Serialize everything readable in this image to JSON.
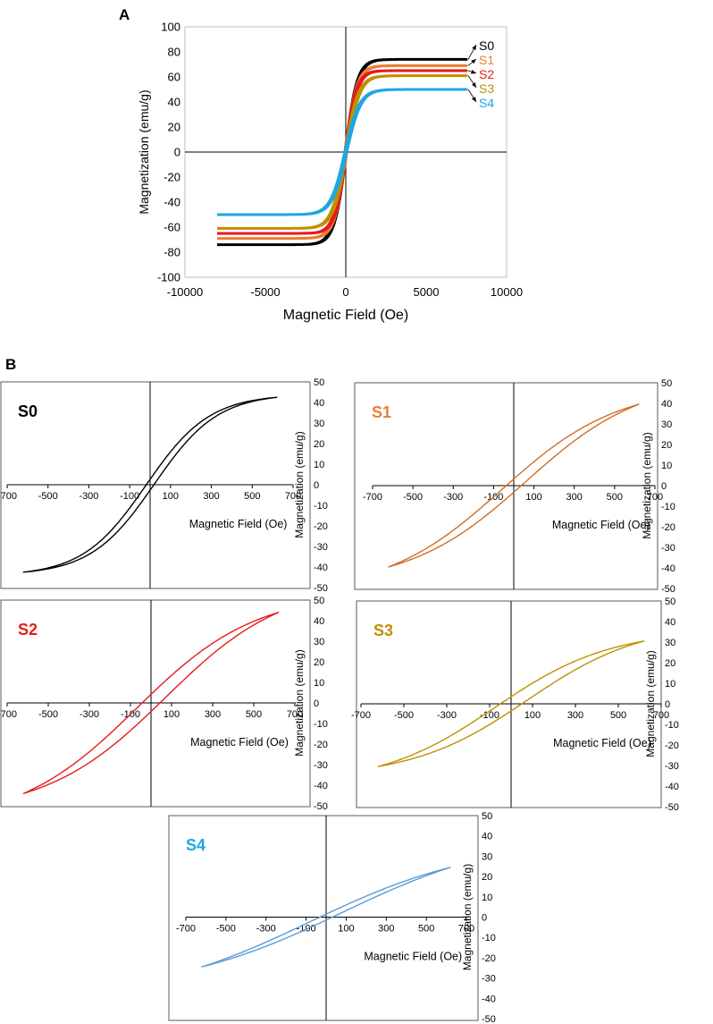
{
  "panels": {
    "a_label": "A",
    "b_label": "B"
  },
  "chart_data": [
    {
      "id": "A",
      "type": "line",
      "title": "",
      "xlabel": "Magnetic Field (Oe)",
      "ylabel": "Magnetization  (emu/g)",
      "xlim": [
        -10000,
        10000
      ],
      "ylim": [
        -100,
        100
      ],
      "xticks": [
        "-10000",
        "-5000",
        "0",
        "5000",
        "10000"
      ],
      "yticks": [
        "100",
        "80",
        "60",
        "40",
        "20",
        "0",
        "-20",
        "-40",
        "-60",
        "-80",
        "-100"
      ],
      "series": [
        {
          "name": "S0",
          "color": "#000000",
          "ms": 74,
          "hc": 50,
          "h0": 750,
          "hmax": 7500,
          "hmin": -8000
        },
        {
          "name": "S1",
          "color": "#ED7D31",
          "ms": 69,
          "hc": 55,
          "h0": 730,
          "hmax": 7500,
          "hmin": -8000
        },
        {
          "name": "S2",
          "color": "#E8191C",
          "ms": 65,
          "hc": 55,
          "h0": 700,
          "hmax": 7500,
          "hmin": -8000
        },
        {
          "name": "S3",
          "color": "#BF9000",
          "ms": 61,
          "hc": 60,
          "h0": 820,
          "hmax": 7500,
          "hmin": -8000
        },
        {
          "name": "S4",
          "color": "#1EA7E1",
          "ms": 50,
          "hc": 60,
          "h0": 900,
          "hmax": 7500,
          "hmin": -8000
        }
      ],
      "legend_labels": [
        "S0",
        "S1",
        "S2",
        "S3",
        "S4"
      ]
    },
    {
      "id": "S0",
      "type": "line",
      "title": "S0",
      "title_color": "#000000",
      "color": "#000000",
      "xlabel": "Magnetic Field (Oe)",
      "ylabel": "Magnetization (emu/g)",
      "xlim": [
        -700,
        700
      ],
      "ylim": [
        -50,
        50
      ],
      "xticks": [
        "-700",
        "-500",
        "-300",
        "-100",
        "100",
        "300",
        "500",
        "700"
      ],
      "yticks": [
        "50",
        "40",
        "30",
        "20",
        "10",
        "0",
        "-10",
        "-20",
        "-30",
        "-40",
        "-50"
      ],
      "hmax": 620,
      "mmax": 42.5,
      "hc": 20,
      "shape": 310
    },
    {
      "id": "S1",
      "type": "line",
      "title": "S1",
      "title_color": "#ED7D31",
      "color": "#D06D28",
      "xlabel": "Magnetic Field (Oe)",
      "ylabel": "Magnetization (emu/g)",
      "xlim": [
        -700,
        700
      ],
      "ylim": [
        -50,
        50
      ],
      "xticks": [
        "-700",
        "-500",
        "-300",
        "-100",
        "100",
        "300",
        "500",
        "700"
      ],
      "yticks": [
        "50",
        "40",
        "30",
        "20",
        "10",
        "0",
        "-10",
        "-20",
        "-30",
        "-40",
        "-50"
      ],
      "hmax": 620,
      "mmax": 39.5,
      "hc": 60,
      "shape": 560
    },
    {
      "id": "S2",
      "type": "line",
      "title": "S2",
      "title_color": "#E8191C",
      "color": "#E8191C",
      "xlabel": "Magnetic Field (Oe)",
      "ylabel": "Magnetization (emu/g)",
      "xlim": [
        -700,
        700
      ],
      "ylim": [
        -50,
        50
      ],
      "xticks": [
        "-700",
        "-500",
        "-300",
        "-100",
        "100",
        "300",
        "500",
        "700"
      ],
      "yticks": [
        "50",
        "40",
        "30",
        "20",
        "10",
        "0",
        "-10",
        "-20",
        "-30",
        "-40",
        "-50"
      ],
      "hmax": 620,
      "mmax": 44,
      "hc": 70,
      "shape": 560
    },
    {
      "id": "S3",
      "type": "line",
      "title": "S3",
      "title_color": "#BF9000",
      "color": "#BF9000",
      "xlabel": "Magnetic Field (Oe)",
      "ylabel": "Magnetization (emu/g)",
      "xlim": [
        -700,
        700
      ],
      "ylim": [
        -50,
        50
      ],
      "xticks": [
        "-700",
        "-500",
        "-300",
        "-100",
        "100",
        "300",
        "500",
        "700"
      ],
      "yticks": [
        "50",
        "40",
        "30",
        "20",
        "10",
        "0",
        "-10",
        "-20",
        "-30",
        "-40",
        "-50"
      ],
      "hmax": 620,
      "mmax": 30.5,
      "hc": 75,
      "shape": 520
    },
    {
      "id": "S4",
      "type": "line",
      "title": "S4",
      "title_color": "#1EA7E1",
      "color": "#5B9BD5",
      "xlabel": "Magnetic Field (Oe)",
      "ylabel": "Magnetization (emu/g)",
      "xlim": [
        -700,
        700
      ],
      "ylim": [
        -50,
        50
      ],
      "xticks": [
        "-700",
        "-500",
        "-300",
        "-100",
        "100",
        "300",
        "500",
        "700"
      ],
      "yticks": [
        "50",
        "40",
        "30",
        "20",
        "10",
        "0",
        "-10",
        "-20",
        "-30",
        "-40",
        "-50"
      ],
      "hmax": 620,
      "mmax": 24.5,
      "hc": 80,
      "shape": 800
    }
  ]
}
